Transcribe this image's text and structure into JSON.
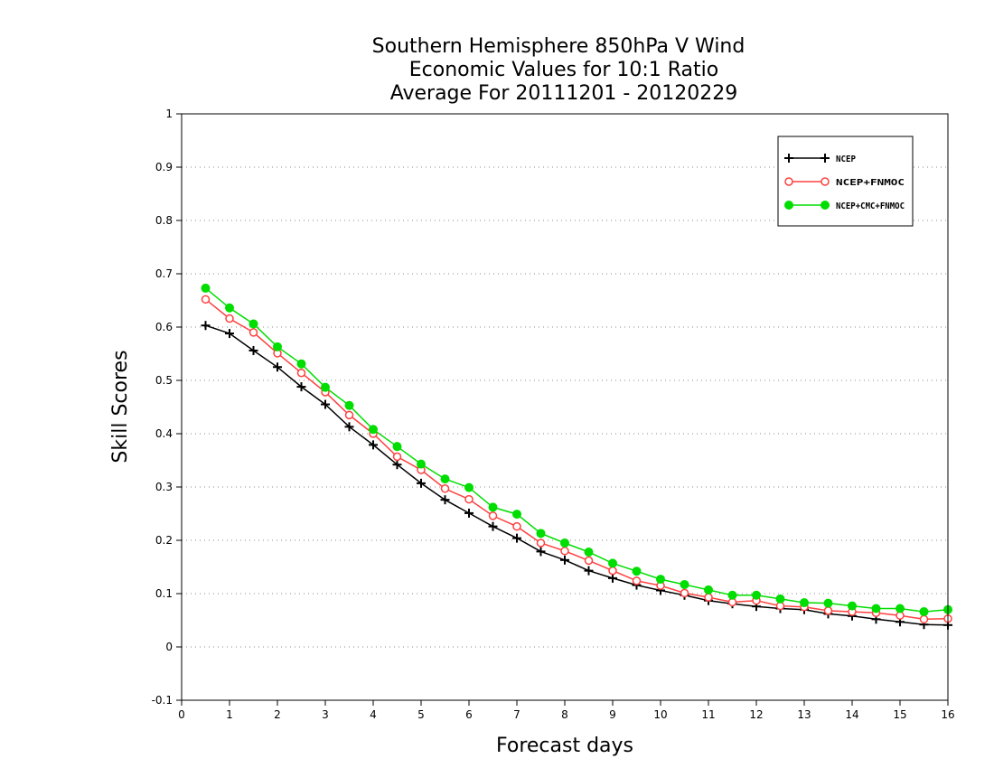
{
  "chart_data": {
    "type": "line",
    "title": [
      "Southern Hemisphere 850hPa V Wind",
      "Economic Values for 10:1 Ratio",
      "Average For 20111201 - 20120229"
    ],
    "xlabel": "Forecast days",
    "ylabel": "Skill Scores",
    "xlim": [
      0,
      16
    ],
    "ylim": [
      -0.1,
      1
    ],
    "xticks": [
      0,
      1,
      2,
      3,
      4,
      5,
      6,
      7,
      8,
      9,
      10,
      11,
      12,
      13,
      14,
      15,
      16
    ],
    "yticks": [
      -0.1,
      0,
      0.1,
      0.2,
      0.3,
      0.4,
      0.5,
      0.6,
      0.7,
      0.8,
      0.9,
      1
    ],
    "ytick_labels": [
      "-0.1",
      "0",
      "0.1",
      "0.2",
      "0.3",
      "0.4",
      "0.5",
      "0.6",
      "0.7",
      "0.8",
      "0.9",
      "1"
    ],
    "grid": "horizontal dotted",
    "legend_position": "top-right",
    "x": [
      0.5,
      1,
      1.5,
      2,
      2.5,
      3,
      3.5,
      4,
      4.5,
      5,
      5.5,
      6,
      6.5,
      7,
      7.5,
      8,
      8.5,
      9,
      9.5,
      10,
      10.5,
      11,
      11.5,
      12,
      12.5,
      13,
      13.5,
      14,
      14.5,
      15,
      15.5,
      16
    ],
    "series": [
      {
        "name": "NCEP",
        "color": "#000000",
        "marker": "plus",
        "values": [
          0.603,
          0.588,
          0.556,
          0.525,
          0.488,
          0.455,
          0.413,
          0.379,
          0.342,
          0.307,
          0.276,
          0.251,
          0.226,
          0.204,
          0.179,
          0.163,
          0.143,
          0.129,
          0.116,
          0.106,
          0.097,
          0.087,
          0.081,
          0.076,
          0.072,
          0.07,
          0.062,
          0.058,
          0.052,
          0.047,
          0.042,
          0.041
        ]
      },
      {
        "name": "NCEP+FNMOC",
        "color": "#ff4040",
        "marker": "open-circle",
        "values": [
          0.652,
          0.616,
          0.59,
          0.551,
          0.514,
          0.478,
          0.435,
          0.4,
          0.357,
          0.332,
          0.297,
          0.277,
          0.246,
          0.226,
          0.195,
          0.18,
          0.162,
          0.143,
          0.124,
          0.115,
          0.101,
          0.093,
          0.084,
          0.087,
          0.077,
          0.075,
          0.068,
          0.066,
          0.064,
          0.059,
          0.052,
          0.053
        ]
      },
      {
        "name": "NCEP+CMC+FNMOC",
        "color": "#00dd00",
        "marker": "filled-circle",
        "values": [
          0.673,
          0.636,
          0.606,
          0.563,
          0.531,
          0.487,
          0.453,
          0.408,
          0.376,
          0.343,
          0.315,
          0.299,
          0.262,
          0.249,
          0.213,
          0.195,
          0.178,
          0.157,
          0.142,
          0.127,
          0.117,
          0.107,
          0.097,
          0.097,
          0.09,
          0.083,
          0.082,
          0.077,
          0.072,
          0.072,
          0.066,
          0.07
        ]
      }
    ]
  }
}
